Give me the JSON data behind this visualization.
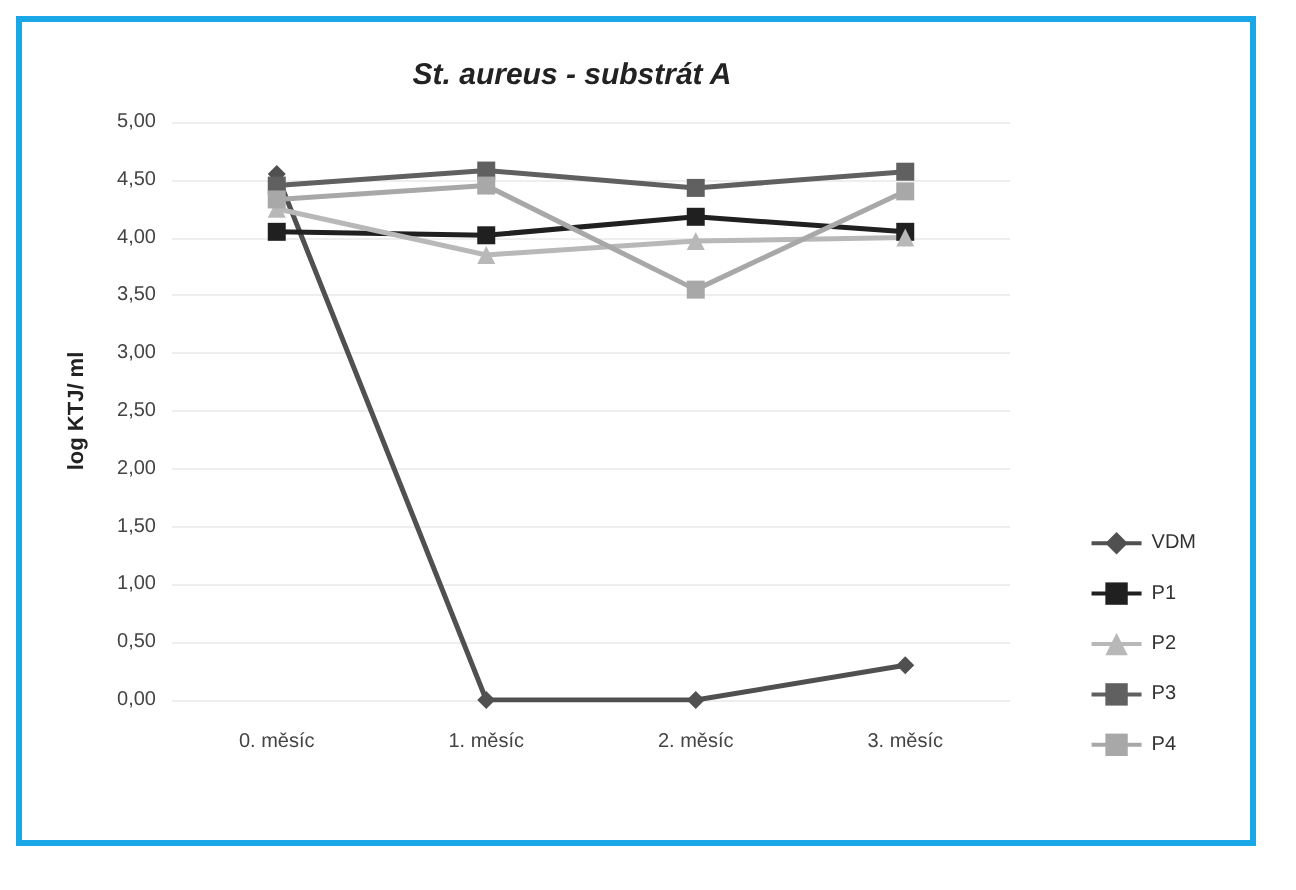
{
  "chart_data": {
    "type": "line",
    "title": "St. aureus - substrát A",
    "ylabel": "log KTJ/ ml",
    "categories": [
      "0. měsíc",
      "1. měsíc",
      "2. měsíc",
      "3. měsíc"
    ],
    "series": [
      {
        "name": "VDM",
        "color": "#505050",
        "marker": "diamond",
        "values": [
          4.55,
          0,
          0,
          0.3
        ]
      },
      {
        "name": "P1",
        "color": "#202020",
        "marker": "square",
        "values": [
          4.05,
          4.02,
          4.18,
          4.05
        ]
      },
      {
        "name": "P2",
        "color": "#b8b8b8",
        "marker": "triangle",
        "values": [
          4.25,
          3.85,
          3.97,
          4.0
        ]
      },
      {
        "name": "P3",
        "color": "#606060",
        "marker": "square",
        "values": [
          4.45,
          4.58,
          4.43,
          4.57
        ]
      },
      {
        "name": "P4",
        "color": "#a8a8a8",
        "marker": "square",
        "values": [
          4.33,
          4.45,
          3.55,
          4.4
        ]
      }
    ],
    "ylim": [
      0,
      5
    ],
    "yticks": [
      {
        "value": 0,
        "label": "0,00"
      },
      {
        "value": 0.5,
        "label": "0,50"
      },
      {
        "value": 1,
        "label": "1,00"
      },
      {
        "value": 1.5,
        "label": "1,50"
      },
      {
        "value": 2,
        "label": "2,00"
      },
      {
        "value": 2.5,
        "label": "2,50"
      },
      {
        "value": 3,
        "label": "3,00"
      },
      {
        "value": 3.5,
        "label": "3,50"
      },
      {
        "value": 4,
        "label": "4,00"
      },
      {
        "value": 4.5,
        "label": "4,50"
      },
      {
        "value": 5,
        "label": "5,00"
      }
    ],
    "grid": "y",
    "legend": "right"
  }
}
